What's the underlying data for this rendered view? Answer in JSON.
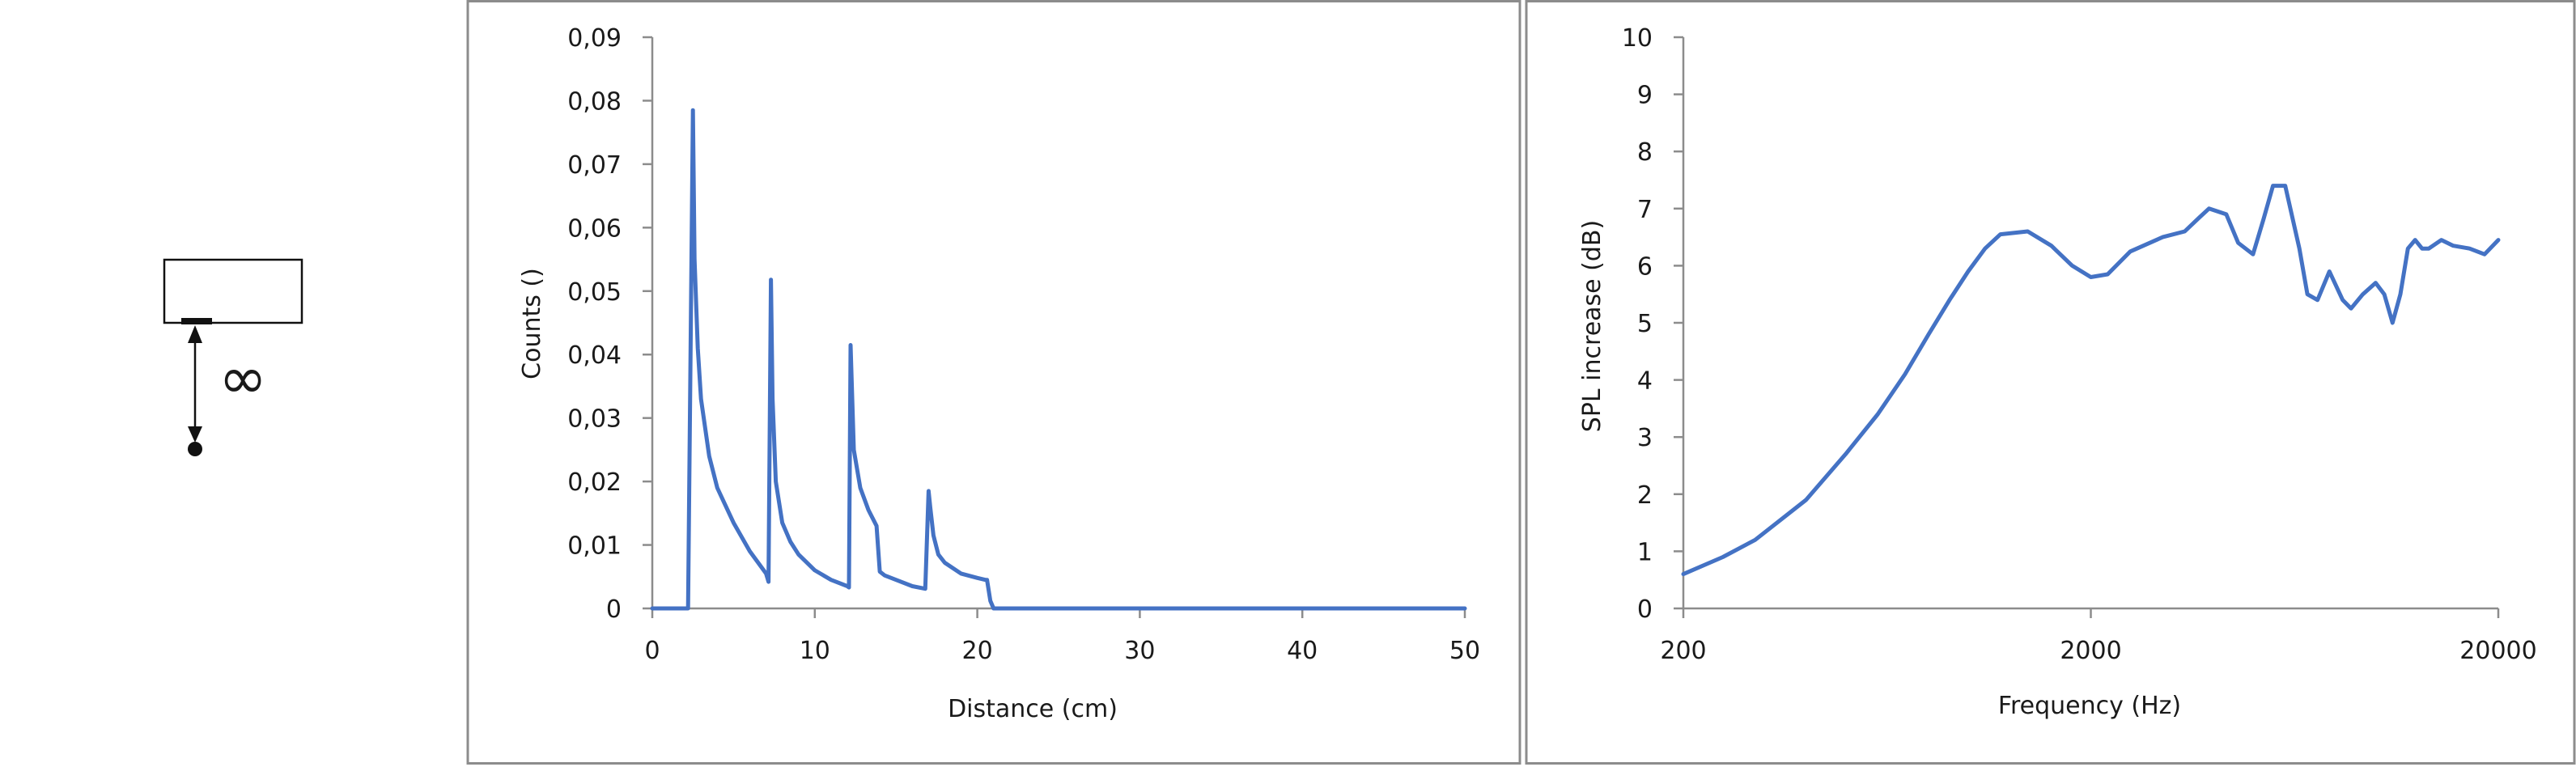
{
  "colors": {
    "series": "#4472c4",
    "axis": "#8c8c8c",
    "frame": "#8c8c8c",
    "text": "#1a1a1a"
  },
  "schematic": {
    "symbol_label": "∞",
    "icon": "source-to-listener-distance-diagram"
  },
  "chart_data": [
    {
      "type": "line",
      "title": "",
      "xlabel": "Distance (cm)",
      "ylabel": "Counts ()",
      "xlim": [
        0,
        50
      ],
      "ylim": [
        0,
        0.09
      ],
      "x_ticks": [
        0,
        10,
        20,
        30,
        40,
        50
      ],
      "x_tick_labels": [
        "0",
        "10",
        "20",
        "30",
        "40",
        "50"
      ],
      "y_ticks": [
        0,
        0.01,
        0.02,
        0.03,
        0.04,
        0.05,
        0.06,
        0.07,
        0.08,
        0.09
      ],
      "y_tick_labels": [
        "0",
        "0,01",
        "0,02",
        "0,03",
        "0,04",
        "0,05",
        "0,06",
        "0,07",
        "0,08",
        "0,09"
      ],
      "grid": false,
      "legend": "none",
      "series": [
        {
          "x": [
            0,
            2.2,
            2.5,
            2.6,
            2.8,
            3.0,
            3.5,
            4.0,
            5.0,
            6.0,
            7.0,
            7.15,
            7.3,
            7.4,
            7.6,
            8.0,
            8.5,
            9.0,
            10.0,
            11.0,
            12.0,
            12.1,
            12.2,
            12.4,
            12.8,
            13.3,
            13.8,
            14.0,
            14.3,
            15.0,
            16.0,
            16.8,
            17.0,
            17.1,
            17.3,
            17.6,
            18.0,
            19.0,
            20.0,
            20.5,
            20.6,
            20.8,
            21.0,
            30.0,
            40.0,
            50.0
          ],
          "y": [
            0,
            0,
            0.0785,
            0.055,
            0.041,
            0.033,
            0.024,
            0.019,
            0.0135,
            0.009,
            0.0055,
            0.0042,
            0.0518,
            0.033,
            0.02,
            0.0135,
            0.0105,
            0.0085,
            0.006,
            0.0045,
            0.0035,
            0.0033,
            0.0415,
            0.025,
            0.019,
            0.0155,
            0.013,
            0.0058,
            0.0052,
            0.0045,
            0.0035,
            0.0031,
            0.0185,
            0.016,
            0.0115,
            0.0085,
            0.0072,
            0.0055,
            0.0048,
            0.0045,
            0.0045,
            0.0012,
            0,
            0,
            0,
            0
          ]
        }
      ]
    },
    {
      "type": "line",
      "title": "",
      "xlabel": "Frequency (Hz)",
      "ylabel": "SPL increase (dB)",
      "x_scale": "log",
      "xlim": [
        200,
        20000
      ],
      "ylim": [
        0,
        10
      ],
      "x_ticks": [
        200,
        2000,
        20000
      ],
      "x_tick_labels": [
        "200",
        "2000",
        "20000"
      ],
      "y_ticks": [
        0,
        1,
        2,
        3,
        4,
        5,
        6,
        7,
        8,
        9,
        10
      ],
      "y_tick_labels": [
        "0",
        "1",
        "2",
        "3",
        "4",
        "5",
        "6",
        "7",
        "8",
        "9",
        "10"
      ],
      "grid": false,
      "legend": "none",
      "series": [
        {
          "x": [
            200,
            250,
            300,
            400,
            500,
            600,
            700,
            800,
            900,
            1000,
            1100,
            1200,
            1400,
            1600,
            1800,
            2000,
            2200,
            2500,
            3000,
            3400,
            3700,
            3900,
            4300,
            4600,
            5000,
            5300,
            5600,
            6000,
            6500,
            6800,
            7200,
            7700,
            8300,
            8700,
            9300,
            10000,
            10500,
            11000,
            11500,
            12000,
            12500,
            13000,
            13500,
            14500,
            15500,
            17000,
            18500,
            20000
          ],
          "y": [
            0.6,
            0.9,
            1.2,
            1.9,
            2.7,
            3.4,
            4.1,
            4.8,
            5.4,
            5.9,
            6.3,
            6.55,
            6.6,
            6.35,
            6.0,
            5.8,
            5.85,
            6.25,
            6.5,
            6.6,
            6.85,
            7.0,
            6.9,
            6.4,
            6.2,
            6.8,
            7.4,
            7.4,
            6.3,
            5.5,
            5.4,
            5.9,
            5.4,
            5.25,
            5.5,
            5.7,
            5.5,
            5.0,
            5.5,
            6.3,
            6.45,
            6.3,
            6.3,
            6.45,
            6.35,
            6.3,
            6.2,
            6.45
          ]
        }
      ]
    }
  ]
}
